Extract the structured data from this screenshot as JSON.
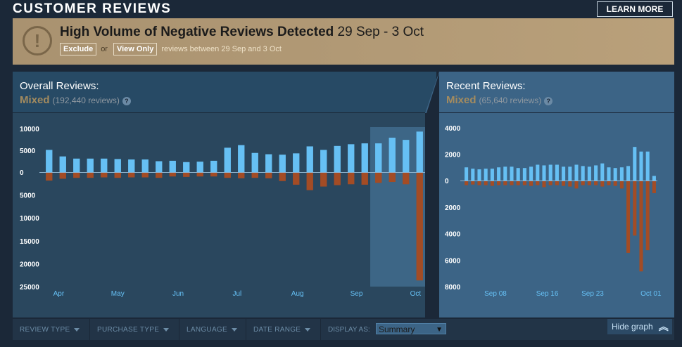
{
  "header": {
    "title": "CUSTOMER REVIEWS",
    "learn_more": "LEARN MORE"
  },
  "alert": {
    "icon": "exclamation-icon",
    "heading": "High Volume of Negative Reviews Detected",
    "date_range": "29 Sep - 3 Oct",
    "exclude_label": "Exclude",
    "or_label": "or",
    "view_only_label": "View Only",
    "range_text": "reviews between 29 Sep and 3 Oct"
  },
  "overall": {
    "title": "Overall Reviews:",
    "rating": "Mixed",
    "count": "(192,440 reviews)",
    "help": "?"
  },
  "recent": {
    "title": "Recent Reviews:",
    "rating": "Mixed",
    "count": "(65,640 reviews)",
    "help": "?"
  },
  "colors": {
    "positive": "#66c0f4",
    "negative": "#a34c25",
    "rating": "#a38b5f"
  },
  "chart_data": [
    {
      "type": "bar",
      "title": "Overall Reviews",
      "y_ticks_pos": [
        "10000",
        "5000",
        "0"
      ],
      "y_ticks_neg": [
        "5000",
        "10000",
        "15000",
        "20000",
        "25000"
      ],
      "ylim_positive": [
        0,
        10000
      ],
      "ylim_negative": [
        0,
        25000
      ],
      "x_labels": [
        "Apr",
        "May",
        "Jun",
        "Jul",
        "Aug",
        "Sep",
        "Oct"
      ],
      "x_label_positions": [
        1.2,
        5.5,
        9.9,
        14.2,
        18.6,
        22.9,
        27.2
      ],
      "highlight_start_index": 24,
      "positive": [
        5100,
        3600,
        3100,
        3100,
        3100,
        3000,
        2900,
        2900,
        2500,
        2600,
        2300,
        2400,
        2600,
        5600,
        6200,
        4400,
        4100,
        4000,
        4300,
        5900,
        5100,
        6000,
        6400,
        6600,
        6600,
        7900,
        7400,
        9300
      ],
      "negative": [
        1700,
        1300,
        1100,
        1100,
        1000,
        1100,
        1000,
        1000,
        1100,
        800,
        900,
        800,
        800,
        1100,
        1200,
        1100,
        1200,
        1800,
        2600,
        3800,
        3000,
        2700,
        2500,
        2600,
        2200,
        2000,
        2500,
        23500
      ]
    },
    {
      "type": "bar",
      "title": "Recent Reviews",
      "y_ticks_pos": [
        "4000",
        "2000",
        "0"
      ],
      "y_ticks_neg": [
        "2000",
        "4000",
        "6000",
        "8000"
      ],
      "ylim_positive": [
        0,
        4000
      ],
      "ylim_negative": [
        0,
        8000
      ],
      "x_labels": [
        "Sep 08",
        "Sep 16",
        "Sep 23",
        "Oct 01"
      ],
      "x_label_positions": [
        5.0,
        13.0,
        20.0,
        29.0
      ],
      "positive": [
        1000,
        900,
        850,
        900,
        900,
        1000,
        1050,
        1050,
        950,
        950,
        1050,
        1200,
        1150,
        1200,
        1200,
        1050,
        1050,
        1200,
        1100,
        1050,
        1150,
        1300,
        1000,
        950,
        1000,
        1100,
        2550,
        2200,
        2200,
        350
      ],
      "negative": [
        300,
        250,
        300,
        300,
        350,
        300,
        300,
        300,
        300,
        300,
        350,
        300,
        450,
        300,
        300,
        350,
        400,
        550,
        300,
        300,
        300,
        400,
        300,
        350,
        550,
        5400,
        4100,
        6800,
        5200,
        900
      ]
    }
  ],
  "footer": {
    "review_type": "REVIEW TYPE",
    "purchase_type": "PURCHASE TYPE",
    "language": "LANGUAGE",
    "date_range": "DATE RANGE",
    "display_as": "DISPLAY AS:",
    "display_value": "Summary",
    "hide_graph": "Hide graph"
  }
}
